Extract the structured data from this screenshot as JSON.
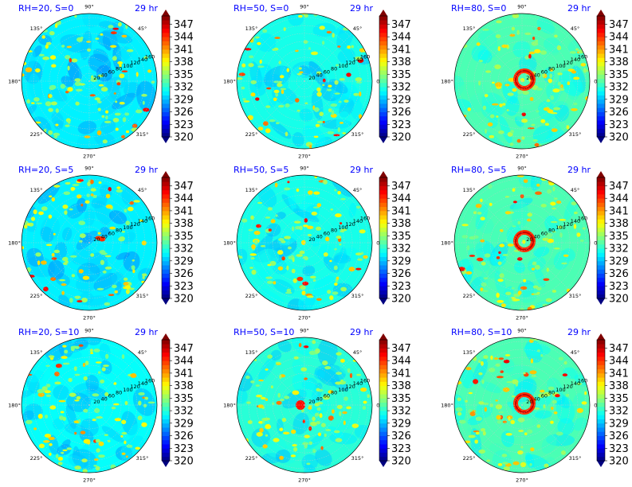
{
  "chart_data": {
    "type": "heatmap",
    "projection": "polar",
    "time_label": "29 hr",
    "angle_tick_labels": [
      "0°",
      "45°",
      "90°",
      "135°",
      "180°",
      "225°",
      "270°",
      "315°"
    ],
    "radius_tick_labels": [
      "20",
      "40",
      "60",
      "80",
      "100",
      "120",
      "140",
      "160"
    ],
    "colorbar": {
      "colormap": "jet",
      "ticks": [
        "320",
        "323",
        "326",
        "329",
        "332",
        "335",
        "338",
        "341",
        "344",
        "347"
      ],
      "range": [
        320,
        349
      ]
    },
    "grid": true,
    "panels": [
      {
        "title": "RH=20, S=0",
        "rh": 20,
        "s": 0,
        "background_level": 330.5
      },
      {
        "title": "RH=50, S=0",
        "rh": 50,
        "s": 0,
        "background_level": 331.5
      },
      {
        "title": "RH=80, S=0",
        "rh": 80,
        "s": 0,
        "background_level": 333
      },
      {
        "title": "RH=20, S=5",
        "rh": 20,
        "s": 5,
        "background_level": 330.5
      },
      {
        "title": "RH=50, S=5",
        "rh": 50,
        "s": 5,
        "background_level": 331.5
      },
      {
        "title": "RH=80, S=5",
        "rh": 80,
        "s": 5,
        "background_level": 333
      },
      {
        "title": "RH=20, S=10",
        "rh": 20,
        "s": 10,
        "background_level": 331
      },
      {
        "title": "RH=50, S=10",
        "rh": 50,
        "s": 10,
        "background_level": 332
      },
      {
        "title": "RH=80, S=10",
        "rh": 80,
        "s": 10,
        "background_level": 333
      }
    ]
  }
}
